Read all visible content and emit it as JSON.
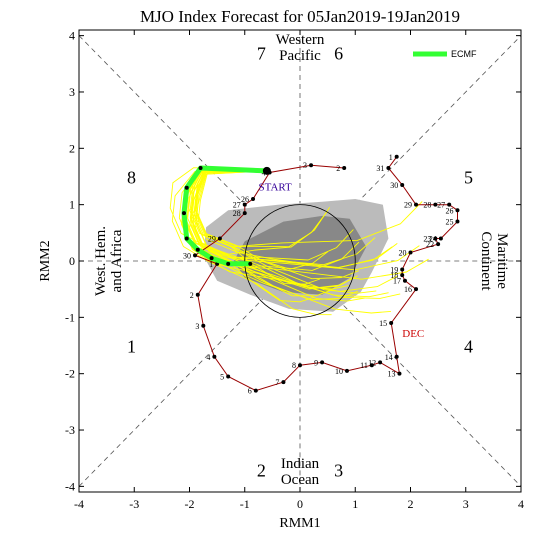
{
  "chart_data": {
    "type": "line",
    "title": "MJO Index Forecast for 05Jan2019-19Jan2019",
    "xlabel": "RMM1",
    "ylabel": "RMM2",
    "xlim": [
      -4,
      4
    ],
    "ylim": [
      -4.1,
      4.1
    ],
    "ticks": [
      "-4",
      "-3",
      "-2",
      "-1",
      "0",
      "1",
      "2",
      "3",
      "4"
    ],
    "grid": false,
    "legend": {
      "position": "top-right",
      "entries": [
        {
          "name": "ECMF",
          "color": "#33ff33"
        }
      ]
    },
    "phase_labels": [
      {
        "text": "1",
        "x": -3.05,
        "y": -1.5
      },
      {
        "text": "2",
        "x": -0.7,
        "y": -3.7
      },
      {
        "text": "3",
        "x": 0.7,
        "y": -3.7
      },
      {
        "text": "4",
        "x": 3.05,
        "y": -1.5
      },
      {
        "text": "5",
        "x": 3.05,
        "y": 1.5
      },
      {
        "text": "6",
        "x": 0.7,
        "y": 3.7
      },
      {
        "text": "7",
        "x": -0.7,
        "y": 3.7
      },
      {
        "text": "8",
        "x": -3.05,
        "y": 1.5
      }
    ],
    "region_labels": {
      "top": [
        "Western",
        "Pacific"
      ],
      "bottom": [
        "Indian",
        "Ocean"
      ],
      "left": [
        "West. Hem.",
        "and Africa"
      ],
      "right": [
        "Maritime",
        "Continent"
      ]
    },
    "annotations": [
      {
        "text": "START",
        "color": "#330099"
      },
      {
        "text": "DEC",
        "color": "#cc0000"
      }
    ],
    "observed_series": {
      "color": "#990000",
      "points": [
        {
          "label": "1",
          "x": 1.75,
          "y": 1.85
        },
        {
          "label": "31",
          "x": 1.6,
          "y": 1.65
        },
        {
          "label": "30",
          "x": 1.85,
          "y": 1.35
        },
        {
          "label": "29",
          "x": 2.1,
          "y": 1.0
        },
        {
          "label": "28",
          "x": 2.45,
          "y": 1.0
        },
        {
          "label": "27",
          "x": 2.7,
          "y": 1.0
        },
        {
          "label": "26",
          "x": 2.85,
          "y": 0.9
        },
        {
          "label": "25",
          "x": 2.85,
          "y": 0.7
        },
        {
          "label": "24",
          "x": 2.55,
          "y": 0.4
        },
        {
          "label": "23",
          "x": 2.45,
          "y": 0.4
        },
        {
          "label": "22",
          "x": 2.5,
          "y": 0.3
        },
        {
          "label": "20",
          "x": 2.0,
          "y": 0.15
        },
        {
          "label": "19",
          "x": 1.85,
          "y": -0.15
        },
        {
          "label": "18",
          "x": 1.85,
          "y": -0.25
        },
        {
          "label": "17",
          "x": 1.9,
          "y": -0.35
        },
        {
          "label": "16",
          "x": 2.1,
          "y": -0.5
        },
        {
          "label": "15",
          "x": 1.65,
          "y": -1.1
        },
        {
          "label": "14",
          "x": 1.75,
          "y": -1.7
        },
        {
          "label": "13",
          "x": 1.8,
          "y": -2.0
        },
        {
          "label": "12",
          "x": 1.45,
          "y": -1.8
        },
        {
          "label": "11",
          "x": 1.3,
          "y": -1.85
        },
        {
          "label": "10",
          "x": 0.85,
          "y": -1.95
        },
        {
          "label": "9",
          "x": 0.4,
          "y": -1.8
        },
        {
          "label": "8",
          "x": 0.0,
          "y": -1.85
        },
        {
          "label": "7",
          "x": -0.3,
          "y": -2.15
        },
        {
          "label": "6",
          "x": -0.8,
          "y": -2.3
        },
        {
          "label": "5",
          "x": -1.3,
          "y": -2.05
        },
        {
          "label": "4",
          "x": -1.55,
          "y": -1.7
        },
        {
          "label": "3",
          "x": -1.75,
          "y": -1.15
        },
        {
          "label": "2",
          "x": -1.85,
          "y": -0.6
        },
        {
          "label": "1",
          "x": -1.5,
          "y": -0.05
        },
        {
          "label": "30",
          "x": -1.9,
          "y": 0.1
        },
        {
          "label": "29",
          "x": -1.45,
          "y": 0.4
        },
        {
          "label": "28",
          "x": -1.0,
          "y": 0.85
        },
        {
          "label": "27",
          "x": -1.0,
          "y": 1.0
        },
        {
          "label": "26",
          "x": -0.85,
          "y": 1.1
        },
        {
          "label": "4",
          "x": -0.55,
          "y": 1.57
        },
        {
          "label": "3",
          "x": 0.2,
          "y": 1.7
        },
        {
          "label": "2",
          "x": 0.8,
          "y": 1.65
        }
      ]
    },
    "ensemble_mean": {
      "name": "ECMF",
      "color": "#33ff33",
      "x": [
        -0.6,
        -1.8,
        -2.05,
        -2.1,
        -2.05,
        -1.85,
        -1.6,
        -1.3,
        -0.9
      ],
      "y": [
        1.6,
        1.65,
        1.3,
        0.85,
        0.4,
        0.2,
        0.05,
        -0.05,
        -0.05
      ]
    },
    "plume_color": "#ffff00",
    "spread_colors": [
      "#bbbbbb",
      "#888888"
    ]
  }
}
